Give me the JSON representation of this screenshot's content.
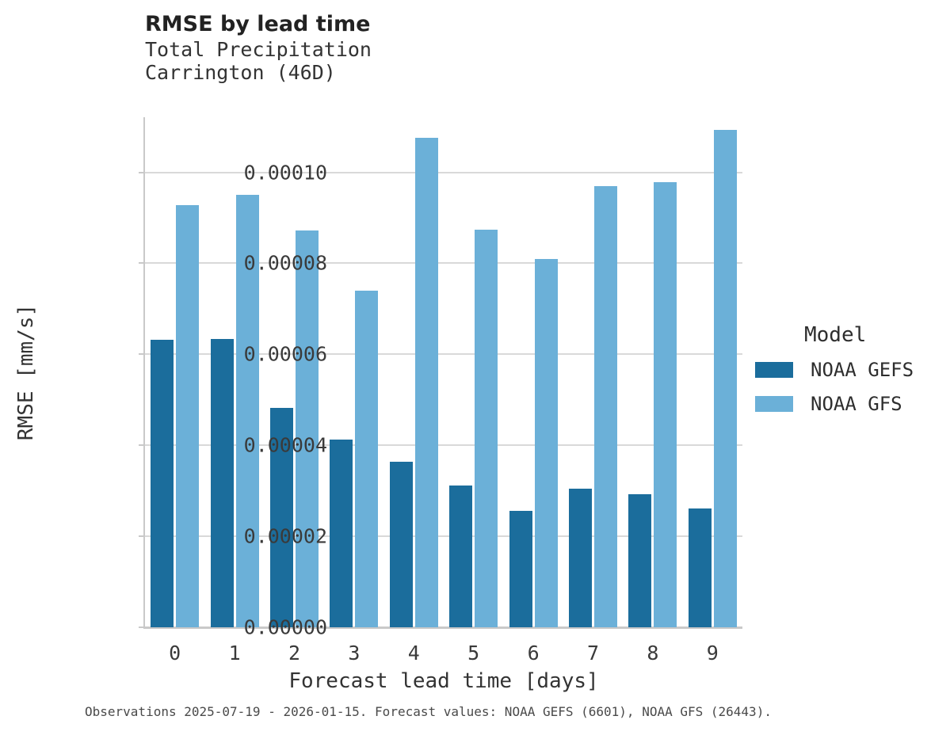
{
  "header": {
    "title": "RMSE by lead time",
    "subtitle_line1": "Total Precipitation",
    "subtitle_line2": "Carrington (46D)"
  },
  "chart_data": {
    "type": "bar",
    "title": "RMSE by lead time",
    "subtitle": "Total Precipitation — Carrington (46D)",
    "xlabel": "Forecast lead time [days]",
    "ylabel": "RMSE [mm/s]",
    "categories": [
      "0",
      "1",
      "2",
      "3",
      "4",
      "5",
      "6",
      "7",
      "8",
      "9"
    ],
    "series": [
      {
        "name": "NOAA GEFS",
        "color": "#1b6d9c",
        "values": [
          6.32e-05,
          6.34e-05,
          4.82e-05,
          4.12e-05,
          3.64e-05,
          3.11e-05,
          2.56e-05,
          3.04e-05,
          2.92e-05,
          2.62e-05
        ]
      },
      {
        "name": "NOAA GFS",
        "color": "#6bb0d8",
        "values": [
          9.28e-05,
          9.51e-05,
          8.72e-05,
          7.4e-05,
          0.0001075,
          8.73e-05,
          8.1e-05,
          9.69e-05,
          9.79e-05,
          0.0001094
        ]
      }
    ],
    "ylim": [
      0,
      0.0001121
    ],
    "yticks": {
      "values": [
        0,
        2e-05,
        4e-05,
        6e-05,
        8e-05,
        0.0001
      ],
      "labels": [
        "0.00000",
        "0.00002",
        "0.00004",
        "0.00006",
        "0.00008",
        "0.00010"
      ]
    },
    "grid": "horizontal",
    "legend_title": "Model",
    "legend_position": "right"
  },
  "footer": {
    "caption": "Observations 2025-07-19 - 2026-01-15. Forecast values: NOAA GEFS (6601), NOAA GFS (26443)."
  }
}
